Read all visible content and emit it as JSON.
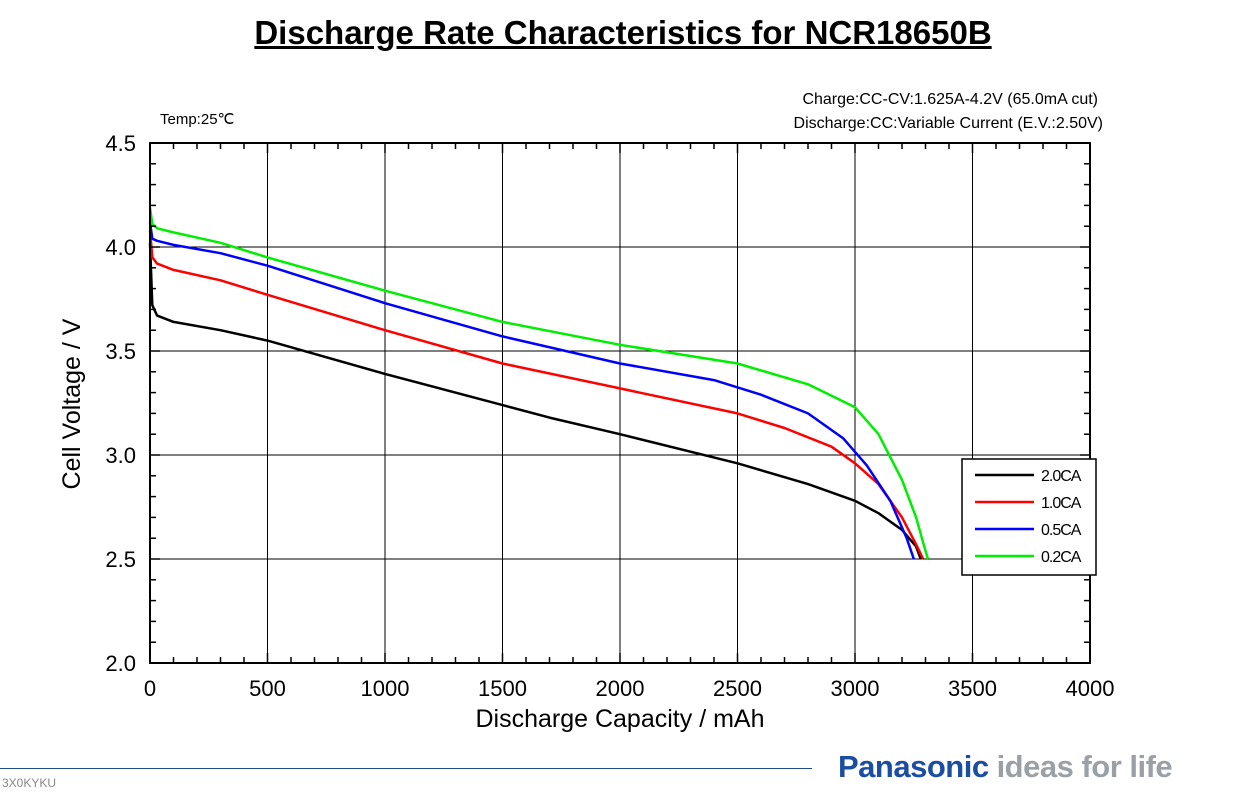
{
  "chart_data": {
    "type": "line",
    "title": "Discharge Rate Characteristics for NCR18650B",
    "xlabel": "Discharge  Capacity  /  mAh",
    "ylabel": "Cell  Voltage  /  V",
    "xlim": [
      0,
      4000
    ],
    "ylim": [
      2.0,
      4.5
    ],
    "xticks": [
      0,
      500,
      1000,
      1500,
      2000,
      2500,
      3000,
      3500,
      4000
    ],
    "yticks": [
      "2.0",
      "2.5",
      "3.0",
      "3.5",
      "4.0",
      "4.5"
    ],
    "grid": true,
    "legend_position": "right",
    "annotations": {
      "temp": "Temp:25℃",
      "charge": "Charge:CC-CV:1.625A-4.2V (65.0mA cut)",
      "discharge": "Discharge:CC:Variable Current (E.V.:2.50V)"
    },
    "series": [
      {
        "name": "2.0CA",
        "color": "#000000",
        "x": [
          0,
          10,
          30,
          100,
          300,
          500,
          1000,
          1500,
          1700,
          2000,
          2500,
          2800,
          3000,
          3100,
          3200,
          3260,
          3280
        ],
        "y": [
          4.02,
          3.72,
          3.67,
          3.64,
          3.6,
          3.55,
          3.39,
          3.24,
          3.18,
          3.1,
          2.96,
          2.86,
          2.78,
          2.72,
          2.64,
          2.56,
          2.5
        ]
      },
      {
        "name": "1.0CA",
        "color": "#ff0000",
        "x": [
          0,
          10,
          30,
          100,
          300,
          500,
          1000,
          1500,
          2000,
          2500,
          2700,
          2900,
          3000,
          3100,
          3200,
          3260,
          3290
        ],
        "y": [
          4.08,
          3.95,
          3.92,
          3.89,
          3.84,
          3.77,
          3.6,
          3.44,
          3.32,
          3.2,
          3.13,
          3.04,
          2.96,
          2.86,
          2.7,
          2.57,
          2.5
        ]
      },
      {
        "name": "0.5CA",
        "color": "#0000ff",
        "x": [
          0,
          10,
          30,
          100,
          300,
          500,
          1000,
          1500,
          2000,
          2400,
          2600,
          2800,
          2950,
          3050,
          3150,
          3220,
          3250
        ],
        "y": [
          4.12,
          4.04,
          4.03,
          4.01,
          3.97,
          3.91,
          3.73,
          3.57,
          3.44,
          3.36,
          3.29,
          3.2,
          3.08,
          2.95,
          2.78,
          2.6,
          2.5
        ]
      },
      {
        "name": "0.2CA",
        "color": "#00ee00",
        "x": [
          0,
          10,
          30,
          100,
          300,
          500,
          1000,
          1500,
          2000,
          2500,
          2800,
          3000,
          3100,
          3200,
          3260,
          3290,
          3310
        ],
        "y": [
          4.19,
          4.11,
          4.09,
          4.07,
          4.02,
          3.95,
          3.79,
          3.64,
          3.53,
          3.44,
          3.34,
          3.23,
          3.1,
          2.88,
          2.7,
          2.58,
          2.5
        ]
      }
    ]
  },
  "footer": {
    "code": "3X0KYKU",
    "brand_name": "Panasonic",
    "brand_tag": "ideas for life",
    "brand_color": "#1b4ea3"
  }
}
